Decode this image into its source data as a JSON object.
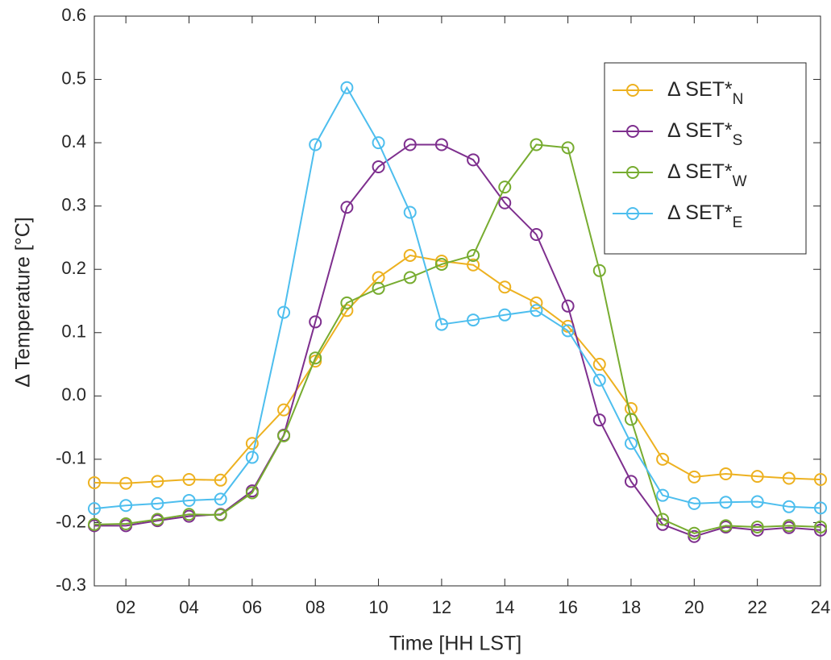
{
  "chart_data": {
    "type": "line",
    "xlabel": "Time [HH LST]",
    "ylabel": "Δ Temperature [°C]",
    "x": [
      1,
      2,
      3,
      4,
      5,
      6,
      7,
      8,
      9,
      10,
      11,
      12,
      13,
      14,
      15,
      16,
      17,
      18,
      19,
      20,
      21,
      22,
      23,
      24
    ],
    "xlim": [
      1,
      24
    ],
    "xticks": [
      {
        "value": 2,
        "label": "02"
      },
      {
        "value": 4,
        "label": "04"
      },
      {
        "value": 6,
        "label": "06"
      },
      {
        "value": 8,
        "label": "08"
      },
      10,
      12,
      14,
      16,
      18,
      20,
      22,
      24
    ],
    "ylim": [
      -0.3,
      0.6
    ],
    "yticks": [
      -0.3,
      -0.2,
      -0.1,
      {
        "value": 0,
        "label": "0.0"
      },
      0.1,
      0.2,
      0.3,
      0.4,
      0.5,
      0.6
    ],
    "legend": "upper right",
    "series": [
      {
        "name": "Δ SET*N",
        "color": "#EDB120",
        "values": [
          -0.137,
          -0.138,
          -0.135,
          -0.132,
          -0.133,
          -0.075,
          -0.022,
          0.055,
          0.135,
          0.187,
          0.222,
          0.213,
          0.207,
          0.172,
          0.147,
          0.11,
          0.05,
          -0.02,
          -0.1,
          -0.128,
          -0.123,
          -0.127,
          -0.13,
          -0.132
        ]
      },
      {
        "name": "Δ SET*S",
        "color": "#7E2F8E",
        "values": [
          -0.205,
          -0.205,
          -0.197,
          -0.19,
          -0.187,
          -0.15,
          -0.062,
          0.117,
          0.298,
          0.362,
          0.397,
          0.397,
          0.373,
          0.305,
          0.255,
          0.142,
          -0.038,
          -0.135,
          -0.203,
          -0.222,
          -0.207,
          -0.212,
          -0.208,
          -0.212
        ]
      },
      {
        "name": "Δ SET*W",
        "color": "#77AC30",
        "values": [
          -0.203,
          -0.202,
          -0.195,
          -0.187,
          -0.188,
          -0.153,
          -0.063,
          0.06,
          0.147,
          0.17,
          0.187,
          0.208,
          0.222,
          0.33,
          0.397,
          0.392,
          0.198,
          -0.037,
          -0.195,
          -0.217,
          -0.205,
          -0.207,
          -0.205,
          -0.207
        ]
      },
      {
        "name": "Δ SET*E",
        "color": "#4DBEEE",
        "values": [
          -0.178,
          -0.173,
          -0.17,
          -0.165,
          -0.163,
          -0.097,
          0.132,
          0.397,
          0.487,
          0.4,
          0.29,
          0.113,
          0.12,
          0.128,
          0.135,
          0.103,
          0.025,
          -0.075,
          -0.157,
          -0.17,
          -0.168,
          -0.167,
          -0.175,
          -0.177
        ]
      }
    ]
  }
}
